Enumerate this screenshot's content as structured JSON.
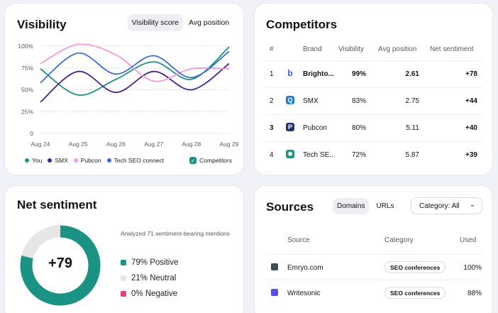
{
  "visibility": {
    "title": "Visibility",
    "toggle": [
      "Visibility score",
      "Avg position"
    ],
    "chart_data": {
      "type": "line",
      "x": [
        "Aug 24",
        "Aug 25",
        "Aug 26",
        "Aug 27",
        "Aug 28",
        "Aug 29"
      ],
      "yticks": [
        "0",
        "25%",
        "50%",
        "75%",
        "100%"
      ],
      "ylim": [
        0,
        100
      ],
      "series": [
        {
          "name": "You",
          "color": "#1a9384",
          "values": [
            74,
            44,
            62,
            82,
            62,
            99
          ]
        },
        {
          "name": "SMX",
          "color": "#4b1f8e",
          "values": [
            36,
            71,
            47,
            71,
            50,
            80
          ]
        },
        {
          "name": "Pubcon",
          "color": "#f39ad9",
          "values": [
            80,
            102,
            90,
            60,
            74,
            74
          ]
        },
        {
          "name": "Tech SEO connect",
          "color": "#3c6bd3",
          "values": [
            58,
            92,
            68,
            89,
            64,
            94
          ]
        }
      ]
    },
    "legend": [
      {
        "label": "You",
        "color": "#1a9384"
      },
      {
        "label": "SMX",
        "color": "#4b1f8e"
      },
      {
        "label": "Pubcon",
        "color": "#f39ad9"
      },
      {
        "label": "Tech SEO connect",
        "color": "#3c6bd3"
      }
    ],
    "competitors_toggle": {
      "label": "Competitors",
      "color": "#1a9384"
    }
  },
  "competitors": {
    "title": "Competitors",
    "headers": {
      "num": "#",
      "brand": "Brand",
      "visibility": "Visibility",
      "avg": "Avg position",
      "sent": "Net sentiment"
    },
    "rows": [
      {
        "num": "1",
        "brand": "Brighto...",
        "visibility": "99%",
        "avg": "2.61",
        "sent": "+78",
        "icon": "b",
        "icon_color": "#2b5fd9",
        "highlight": true
      },
      {
        "num": "2",
        "brand": "SMX",
        "visibility": "83%",
        "avg": "2.75",
        "sent": "+44",
        "icon": "Q",
        "icon_color": "#1f7fd1",
        "highlight": false
      },
      {
        "num": "3",
        "brand": "Pubcon",
        "visibility": "80%",
        "avg": "5.11",
        "sent": "+40",
        "icon": "P",
        "icon_color": "#23356e",
        "highlight": false
      },
      {
        "num": "4",
        "brand": "Tech SE...",
        "visibility": "72%",
        "avg": "5.87",
        "sent": "+39",
        "icon": "✸",
        "icon_color": "#1a9384",
        "highlight": false
      }
    ]
  },
  "sentiment": {
    "title": "Net sentiment",
    "value": "+79",
    "analyzed": "Analyzed 71 sentiment-bearing mentions",
    "chart_data": {
      "type": "pie",
      "labels": [
        "Positive",
        "Neutral",
        "Negative"
      ],
      "values": [
        79,
        21,
        0
      ],
      "colors": [
        "#1a9384",
        "#e6e6e9",
        "#e43f7b"
      ]
    },
    "lines": [
      {
        "label": "79% Positive",
        "color": "#1a9384"
      },
      {
        "label": "21% Neutral",
        "color": "#e6e6e9"
      },
      {
        "label": "0% Negative",
        "color": "#e43f7b"
      }
    ]
  },
  "sources": {
    "title": "Sources",
    "tabs": [
      "Domains",
      "URLs"
    ],
    "category_select": "Category: All",
    "headers": {
      "source": "Source",
      "category": "Category",
      "used": "Used"
    },
    "rows": [
      {
        "source": "Emryo.com",
        "category": "SEO conferences",
        "used": "100%",
        "icon_color": "#444a55"
      },
      {
        "source": "Writesonic",
        "category": "SEO conferences",
        "used": "88%",
        "icon_color": "#5b4de0"
      }
    ]
  }
}
